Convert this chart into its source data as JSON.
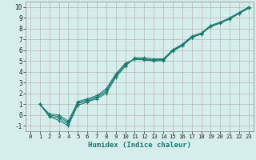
{
  "xlabel": "Humidex (Indice chaleur)",
  "bg_color": "#d6eeeb",
  "grid_color": "#b8b8b8",
  "line_color": "#1a7a6e",
  "xlim": [
    -0.5,
    23.5
  ],
  "ylim": [
    -1.5,
    10.5
  ],
  "xticks": [
    0,
    1,
    2,
    3,
    4,
    5,
    6,
    7,
    8,
    9,
    10,
    11,
    12,
    13,
    14,
    15,
    16,
    17,
    18,
    19,
    20,
    21,
    22,
    23
  ],
  "yticks": [
    -1,
    0,
    1,
    2,
    3,
    4,
    5,
    6,
    7,
    8,
    9,
    10
  ],
  "lines": [
    {
      "x": [
        1,
        2,
        3,
        4,
        5,
        6,
        7,
        8,
        9,
        10,
        11,
        12,
        13,
        14,
        15,
        16,
        17,
        18,
        19,
        20,
        21,
        22,
        23
      ],
      "y": [
        1.0,
        -0.15,
        -0.5,
        -1.0,
        0.9,
        1.2,
        1.5,
        2.0,
        3.5,
        4.5,
        5.3,
        5.3,
        5.2,
        5.2,
        6.0,
        6.5,
        7.2,
        7.5,
        8.2,
        8.5,
        8.9,
        9.4,
        9.9
      ]
    },
    {
      "x": [
        1,
        2,
        3,
        4,
        5,
        6,
        7,
        8,
        9,
        10,
        11,
        12,
        13,
        14,
        15,
        16,
        17,
        18,
        19,
        20,
        21,
        22,
        23
      ],
      "y": [
        1.0,
        -0.1,
        -0.3,
        -0.85,
        1.05,
        1.3,
        1.6,
        2.15,
        3.6,
        4.6,
        5.25,
        5.2,
        5.1,
        5.15,
        6.05,
        6.55,
        7.3,
        7.6,
        8.3,
        8.6,
        9.0,
        9.5,
        10.0
      ]
    },
    {
      "x": [
        1,
        2,
        3,
        4,
        5,
        6,
        7,
        8,
        9,
        10,
        11,
        12,
        13,
        14,
        15,
        16,
        17,
        18,
        19,
        20,
        21,
        22,
        23
      ],
      "y": [
        1.0,
        0.0,
        -0.15,
        -0.7,
        1.15,
        1.4,
        1.7,
        2.3,
        3.7,
        4.7,
        5.2,
        5.15,
        5.05,
        5.1,
        5.95,
        6.45,
        7.2,
        7.55,
        8.25,
        8.55,
        8.95,
        9.45,
        9.95
      ]
    },
    {
      "x": [
        1,
        2,
        3,
        4,
        5,
        6,
        7,
        8,
        9,
        10,
        11,
        12,
        13,
        14,
        15,
        16,
        17,
        18,
        19,
        20,
        21,
        22,
        23
      ],
      "y": [
        1.0,
        0.1,
        0.0,
        -0.55,
        1.25,
        1.5,
        1.8,
        2.45,
        3.8,
        4.8,
        5.15,
        5.1,
        5.0,
        5.05,
        5.9,
        6.4,
        7.15,
        7.5,
        8.2,
        8.5,
        8.9,
        9.4,
        9.9
      ]
    }
  ]
}
